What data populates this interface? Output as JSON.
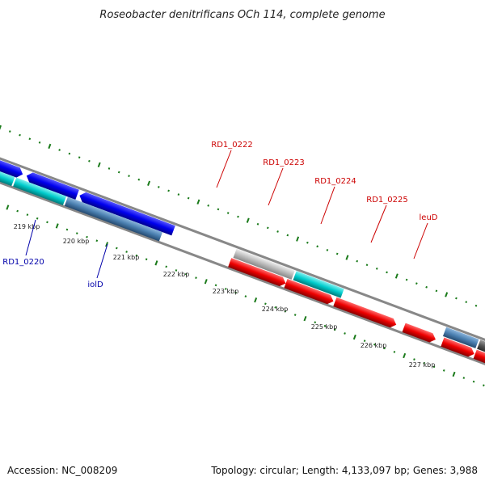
{
  "title": "Roseobacter denitrificans OCh 114, complete genome",
  "accession": "Accession: NC_008209",
  "summary": "Topology: circular; Length: 4,133,097 bp; Genes: 3,988",
  "scale_labels": [
    "219 kbp",
    "220 kbp",
    "221 kbp",
    "222 kbp",
    "223 kbp",
    "224 kbp",
    "225 kbp",
    "226 kbp",
    "227 kbp"
  ],
  "gene_labels": [
    {
      "text": "RD1_0220",
      "color": "#0000aa"
    },
    {
      "text": "iolD",
      "color": "#0000aa"
    },
    {
      "text": "RD1_0222",
      "color": "#cc0000"
    },
    {
      "text": "RD1_0223",
      "color": "#cc0000"
    },
    {
      "text": "RD1_0224",
      "color": "#cc0000"
    },
    {
      "text": "RD1_0225",
      "color": "#cc0000"
    },
    {
      "text": "leuD",
      "color": "#cc0000"
    }
  ],
  "colors": {
    "backbone": "#888888",
    "tick": "#1a7a1a",
    "forward_gene": "#0000ee",
    "reverse_gene": "#ee0000",
    "cyan_gene": "#00cccc",
    "steel_gene": "#4a7fb0",
    "light_gene": "#bbbbbb",
    "dark_gene": "#555555"
  }
}
